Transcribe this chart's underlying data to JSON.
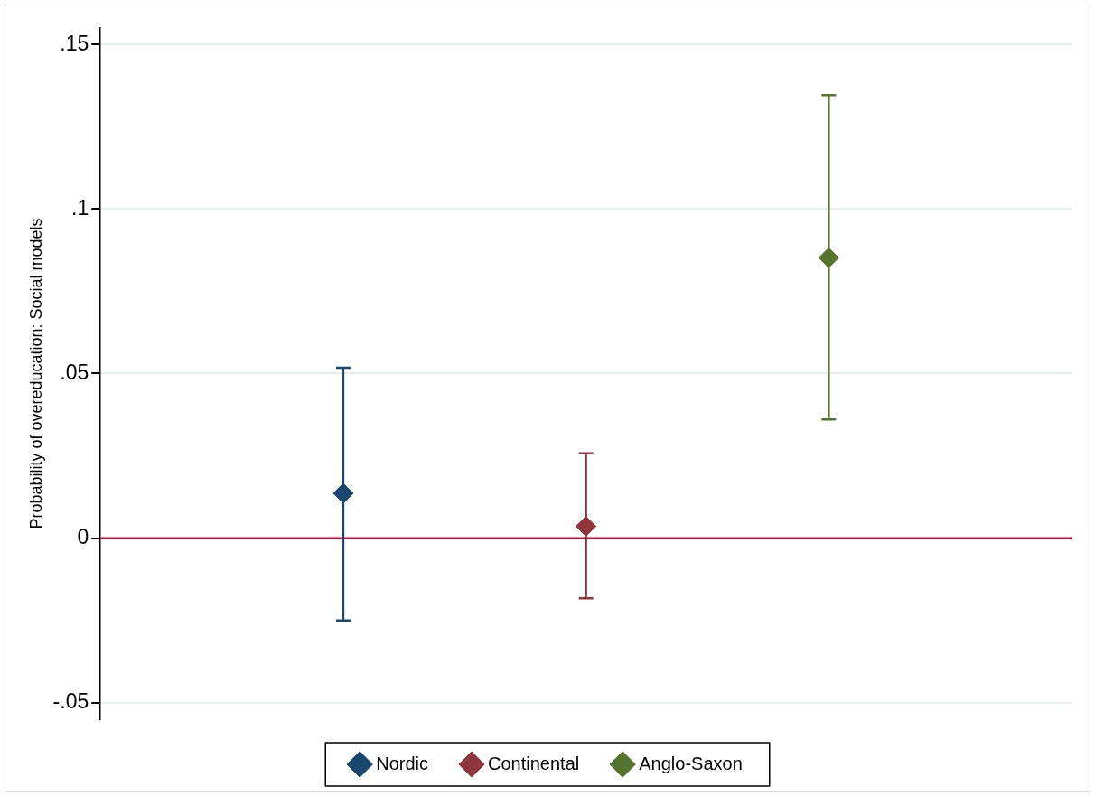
{
  "chart_data": {
    "type": "scatter",
    "ylabel": "Probability of overeducation: Social models",
    "categories": [
      null,
      null,
      null,
      null,
      null
    ],
    "series": [
      {
        "name": "Nordic",
        "color": "#1a476f",
        "values": [
          null,
          0.0136,
          null,
          null,
          null
        ],
        "errors": [
          null,
          [
            -0.025,
            0.0518
          ],
          null,
          null,
          null
        ]
      },
      {
        "name": "Continental",
        "color": "#90353b",
        "values": [
          null,
          null,
          0.0036,
          null,
          null
        ],
        "errors": [
          null,
          null,
          [
            -0.0183,
            0.0258
          ],
          null,
          null
        ]
      },
      {
        "name": "Anglo-Saxon",
        "color": "#55752f",
        "values": [
          null,
          null,
          null,
          0.0852,
          null
        ],
        "errors": [
          null,
          null,
          null,
          [
            0.0361,
            0.1346
          ],
          null
        ]
      }
    ],
    "ylim": [
      -0.055,
      0.155
    ],
    "yticks": [
      {
        "value": -0.05,
        "label": "-.05"
      },
      {
        "value": 0,
        "label": "0"
      },
      {
        "value": 0.05,
        "label": ".05"
      },
      {
        "value": 0.1,
        "label": ".1"
      },
      {
        "value": 0.15,
        "label": ".15"
      }
    ],
    "ref_lines": [
      {
        "axis": "y",
        "value": 0,
        "color": "#c10534"
      }
    ],
    "grid": "y",
    "legend": "bottom",
    "marker": "diamond",
    "tick_labels": "y"
  }
}
